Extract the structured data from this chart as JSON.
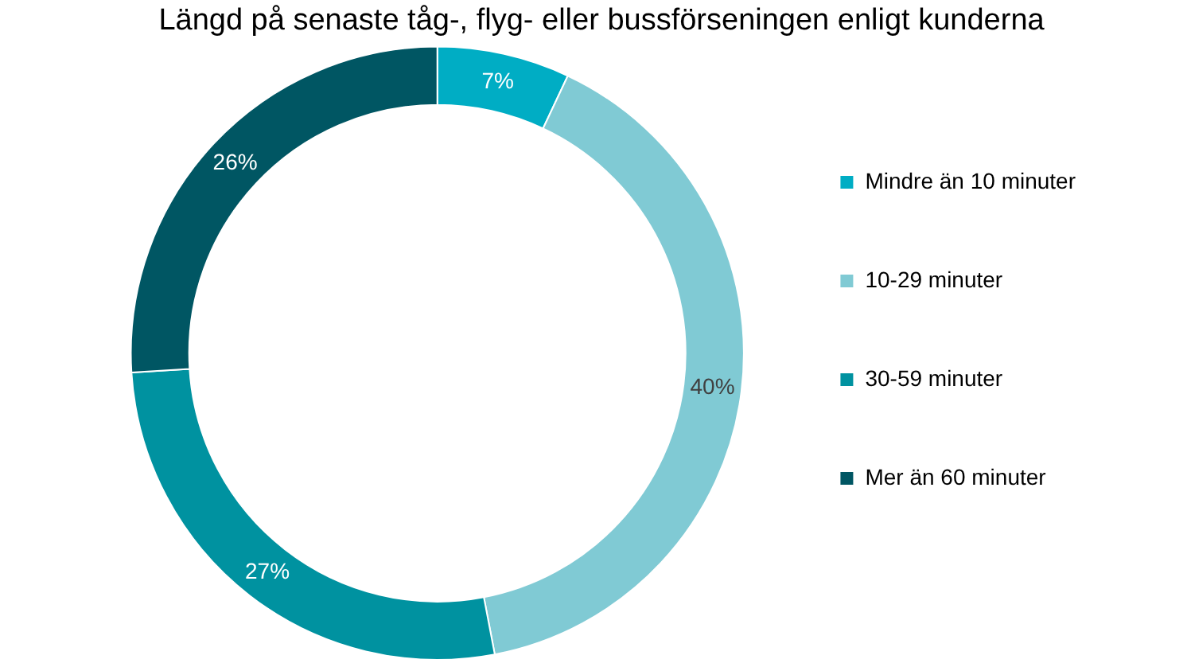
{
  "chart_data": {
    "type": "donut",
    "title": "Längd på senaste tåg-, flyg- eller bussförseningen enligt kunderna",
    "categories": [
      "Mindre än 10 minuter",
      "10-29 minuter",
      "30-59 minuter",
      "Mer än 60 minuter"
    ],
    "values": [
      7,
      40,
      27,
      26
    ],
    "colors": [
      "#00adc4",
      "#80cad4",
      "#0092a0",
      "#005663"
    ],
    "value_labels": [
      "7%",
      "40%",
      "27%",
      "26%"
    ],
    "legend": "right"
  }
}
